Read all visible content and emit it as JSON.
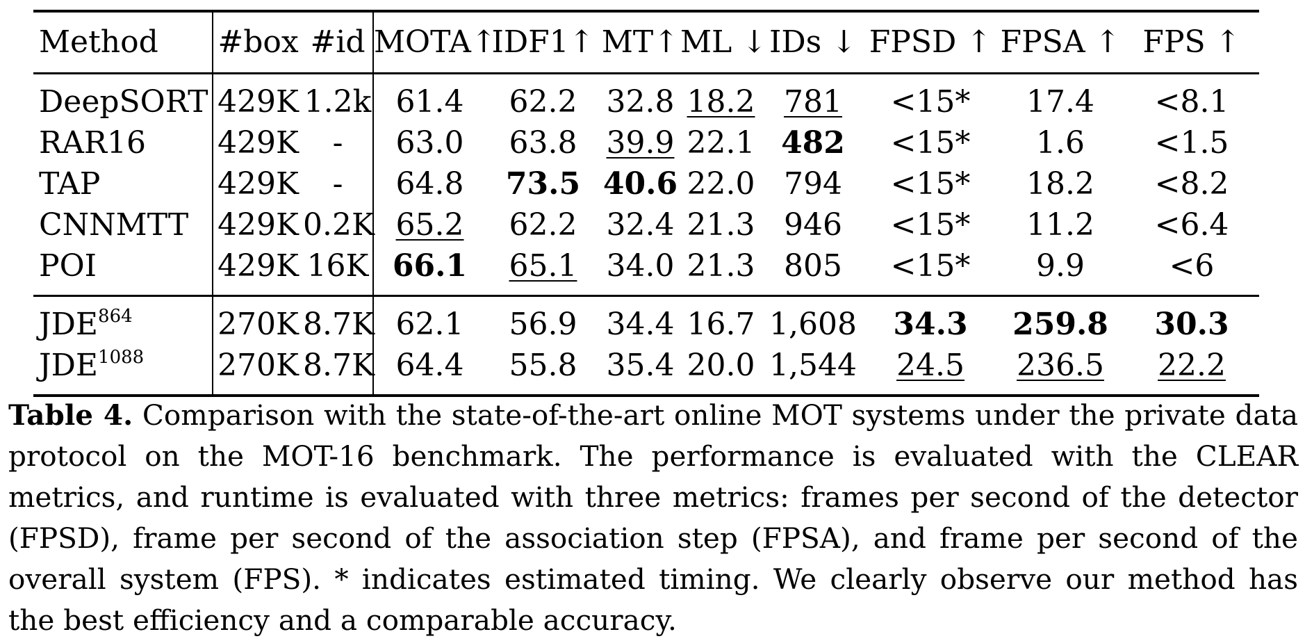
{
  "table": {
    "headers": [
      "Method",
      "#box",
      "#id",
      "MOTA↑",
      "IDF1↑",
      "MT↑",
      "ML ↓",
      "IDs ↓",
      "FPSD ↑",
      "FPSA ↑",
      "FPS ↑"
    ],
    "group1": [
      {
        "method": "DeepSORT",
        "sup": "",
        "box": "429K",
        "id": "1.2k",
        "mota": "61.4",
        "idf1": "62.2",
        "mt": "32.8",
        "ml": "18.2",
        "ids": "781",
        "fpsd": "<15*",
        "fpsa": "17.4",
        "fps": "<8.1"
      },
      {
        "method": "RAR16",
        "sup": "",
        "box": "429K",
        "id": "-",
        "mota": "63.0",
        "idf1": "63.8",
        "mt": "39.9",
        "ml": "22.1",
        "ids": "482",
        "fpsd": "<15*",
        "fpsa": "1.6",
        "fps": "<1.5"
      },
      {
        "method": "TAP",
        "sup": "",
        "box": "429K",
        "id": "-",
        "mota": "64.8",
        "idf1": "73.5",
        "mt": "40.6",
        "ml": "22.0",
        "ids": "794",
        "fpsd": "<15*",
        "fpsa": "18.2",
        "fps": "<8.2"
      },
      {
        "method": "CNNMTT",
        "sup": "",
        "box": "429K",
        "id": "0.2K",
        "mota": "65.2",
        "idf1": "62.2",
        "mt": "32.4",
        "ml": "21.3",
        "ids": "946",
        "fpsd": "<15*",
        "fpsa": "11.2",
        "fps": "<6.4"
      },
      {
        "method": "POI",
        "sup": "",
        "box": "429K",
        "id": "16K",
        "mota": "66.1",
        "idf1": "65.1",
        "mt": "34.0",
        "ml": "21.3",
        "ids": "805",
        "fpsd": "<15*",
        "fpsa": "9.9",
        "fps": "<6"
      }
    ],
    "group2": [
      {
        "method": "JDE",
        "sup": "864",
        "box": "270K",
        "id": "8.7K",
        "mota": "62.1",
        "idf1": "56.9",
        "mt": "34.4",
        "ml": "16.7",
        "ids": "1,608",
        "fpsd": "34.3",
        "fpsa": "259.8",
        "fps": "30.3"
      },
      {
        "method": "JDE",
        "sup": "1088",
        "box": "270K",
        "id": "8.7K",
        "mota": "64.4",
        "idf1": "55.8",
        "mt": "35.4",
        "ml": "20.0",
        "ids": "1,544",
        "fpsd": "24.5",
        "fpsa": "236.5",
        "fps": "22.2"
      }
    ]
  },
  "caption": {
    "label": "Table 4.",
    "text": "Comparison with the state-of-the-art online MOT systems under the private data protocol on the MOT-16 benchmark. The performance is evaluated with the CLEAR metrics, and runtime is evaluated with three metrics: frames per second of the detector (FPSD), frame per second of the association step (FPSA), and frame per second of the overall system (FPS). * indicates estimated timing. We clearly observe our method has the best efficiency and a comparable accuracy."
  }
}
